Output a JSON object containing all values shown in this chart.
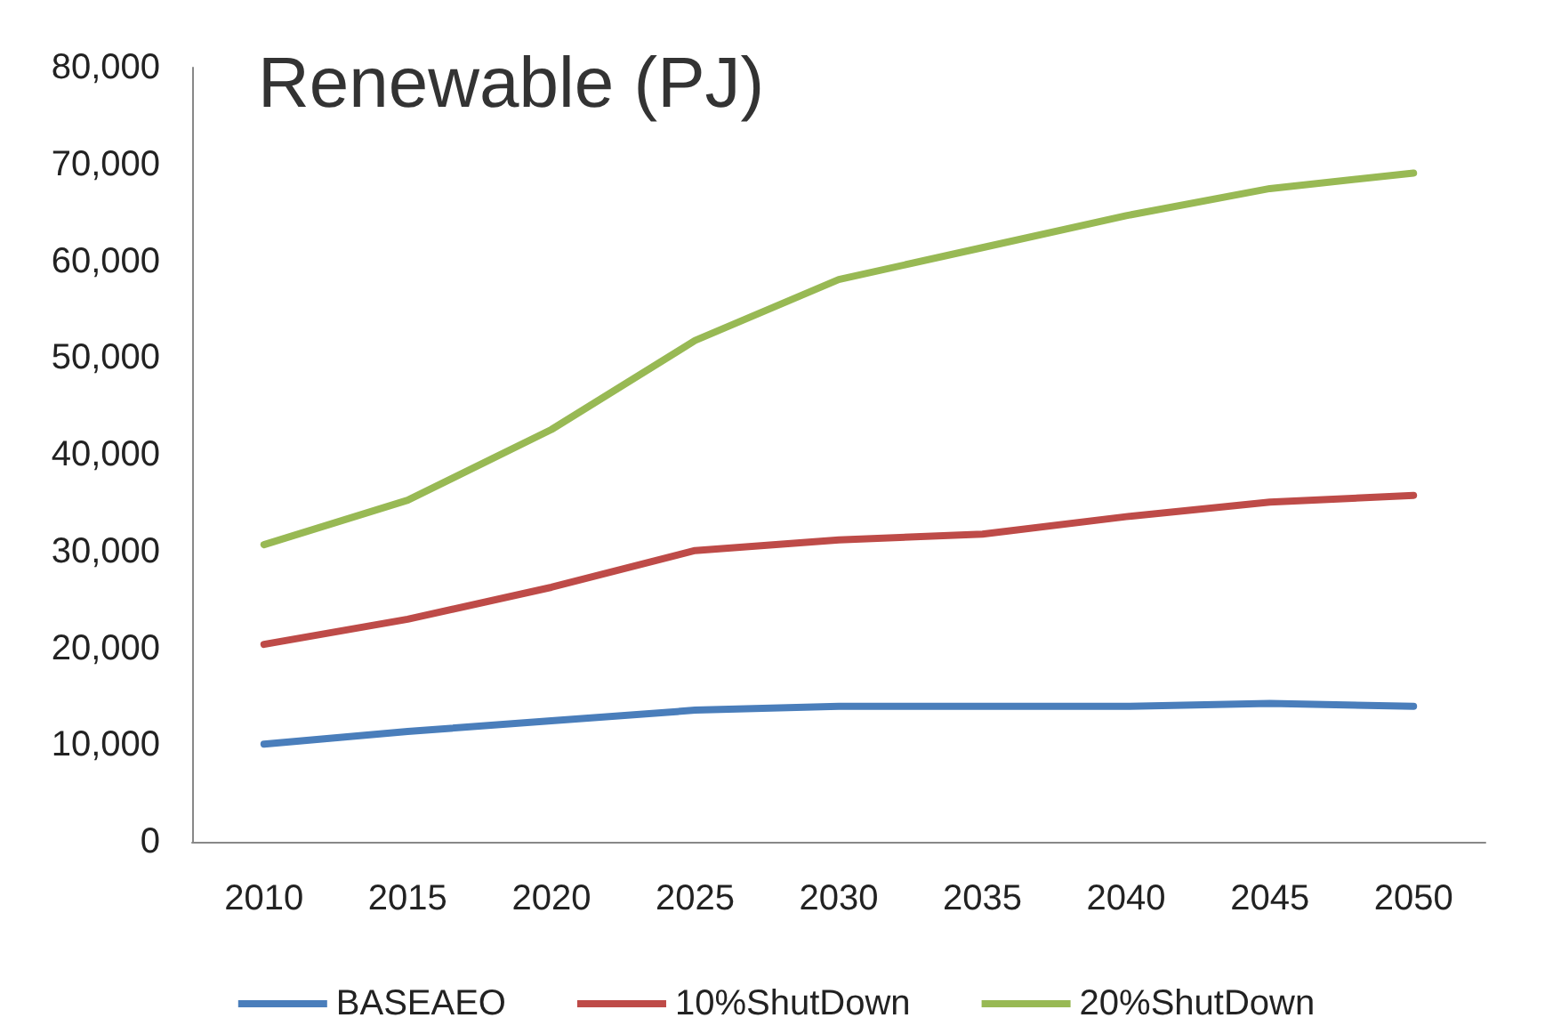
{
  "chart_data": {
    "type": "line",
    "title": "Renewable (PJ)",
    "categories": [
      "2010",
      "2015",
      "2020",
      "2025",
      "2030",
      "2035",
      "2040",
      "2045",
      "2050"
    ],
    "series": [
      {
        "name": "BASEAEO",
        "color": "#4a7ebb",
        "values": [
          10100,
          11400,
          12500,
          13600,
          14000,
          14000,
          14000,
          14300,
          14000
        ]
      },
      {
        "name": "10%ShutDown",
        "color": "#be4b48",
        "values": [
          20400,
          23000,
          26300,
          30100,
          31200,
          31800,
          33600,
          35100,
          35800
        ]
      },
      {
        "name": "20%ShutDown",
        "color": "#98b954",
        "values": [
          30700,
          35300,
          42600,
          51800,
          58100,
          61400,
          64700,
          67500,
          69100
        ]
      }
    ],
    "ylim": [
      0,
      80000
    ],
    "yticks": [
      0,
      {
        "value": 10000,
        "label": "10,000"
      },
      {
        "value": 20000,
        "label": "20,000"
      },
      {
        "value": 30000,
        "label": "30,000"
      },
      {
        "value": 40000,
        "label": "40,000"
      },
      {
        "value": 50000,
        "label": "50,000"
      },
      {
        "value": 60000,
        "label": "60,000"
      },
      {
        "value": 70000,
        "label": "70,000"
      },
      {
        "value": 80000,
        "label": "80,000"
      }
    ],
    "grid": false,
    "legend": "bottom",
    "marker": "none",
    "line_style": "solid"
  }
}
